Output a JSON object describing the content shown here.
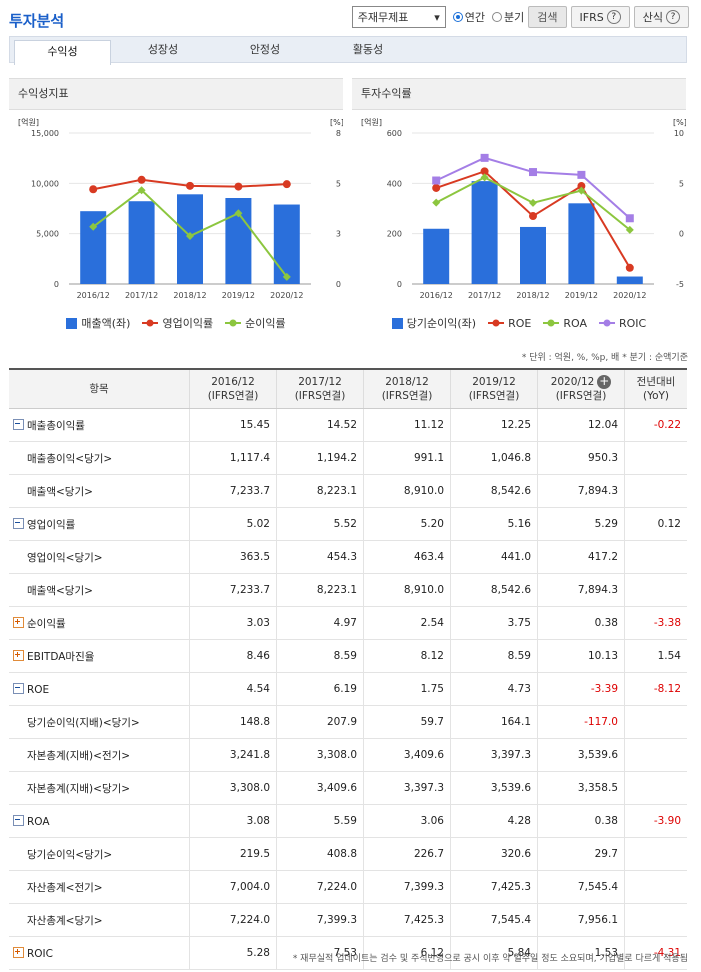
{
  "page_title": "투자분석",
  "controls": {
    "select_value": "주재무제표",
    "radio_annual": "연간",
    "radio_quarter": "분기",
    "search_label": "검색",
    "ifrs_label": "IFRS",
    "formula_label": "산식",
    "help_glyph": "?"
  },
  "tabs": [
    "수익성",
    "성장성",
    "안정성",
    "활동성"
  ],
  "left_chart_title": "수익성지표",
  "right_chart_title": "투자수익률",
  "chart_data": [
    {
      "type": "bar-line",
      "title": "수익성지표",
      "categories": [
        "2016/12",
        "2017/12",
        "2018/12",
        "2019/12",
        "2020/12"
      ],
      "y_left": {
        "unit": "[억원]",
        "ticks": [
          "0",
          "5,000",
          "10,000",
          "15,000"
        ],
        "min": 0,
        "max": 15000
      },
      "y_right": {
        "unit": "[%]",
        "ticks": [
          "0",
          "3",
          "5",
          "8"
        ],
        "min": 0,
        "max": 8
      },
      "bars": {
        "name": "매출액(좌)",
        "values": [
          7233.7,
          8223.1,
          8910.0,
          8542.6,
          7894.3
        ],
        "color": "#2a6fdb"
      },
      "lines": [
        {
          "name": "영업이익률",
          "values": [
            5.02,
            5.52,
            5.2,
            5.16,
            5.29
          ],
          "color": "#d83a22"
        },
        {
          "name": "순이익률",
          "values": [
            3.03,
            4.97,
            2.54,
            3.75,
            0.38
          ],
          "color": "#8cc63f"
        }
      ]
    },
    {
      "type": "bar-line",
      "title": "투자수익률",
      "categories": [
        "2016/12",
        "2017/12",
        "2018/12",
        "2019/12",
        "2020/12"
      ],
      "y_left": {
        "unit": "[억원]",
        "ticks": [
          "0",
          "200",
          "400",
          "600"
        ],
        "min": 0,
        "max": 600
      },
      "y_right": {
        "unit": "[%]",
        "ticks": [
          "-5",
          "0",
          "5",
          "10"
        ],
        "min": -5,
        "max": 10
      },
      "bars": {
        "name": "당기순이익(좌)",
        "values": [
          219.5,
          408.8,
          226.7,
          320.6,
          29.7
        ],
        "color": "#2a6fdb"
      },
      "lines": [
        {
          "name": "ROE",
          "values": [
            4.54,
            6.19,
            1.75,
            4.73,
            -3.39
          ],
          "color": "#d83a22"
        },
        {
          "name": "ROA",
          "values": [
            3.08,
            5.59,
            3.06,
            4.28,
            0.38
          ],
          "color": "#8cc63f"
        },
        {
          "name": "ROIC",
          "values": [
            5.28,
            7.53,
            6.12,
            5.84,
            1.53
          ],
          "color": "#a47ee6"
        }
      ]
    }
  ],
  "unit_note": "* 단위 : 억원, %, %p, 배   * 분기 : 순액기준",
  "table": {
    "header_item": "항목",
    "columns": [
      {
        "year": "2016/12",
        "type": "(IFRS연결)"
      },
      {
        "year": "2017/12",
        "type": "(IFRS연결)"
      },
      {
        "year": "2018/12",
        "type": "(IFRS연결)"
      },
      {
        "year": "2019/12",
        "type": "(IFRS연결)"
      },
      {
        "year": "2020/12",
        "type": "(IFRS연결)"
      }
    ],
    "header_add_glyph": "+",
    "yoy_line1": "전년대비",
    "yoy_line2": "(YoY)",
    "rows": [
      {
        "label": "매출총이익률",
        "level": 0,
        "toggle": "minus",
        "values": [
          "15.45",
          "14.52",
          "11.12",
          "12.25",
          "12.04"
        ],
        "yoy": "-0.22"
      },
      {
        "label": "매출총이익<당기>",
        "level": 1,
        "values": [
          "1,117.4",
          "1,194.2",
          "991.1",
          "1,046.8",
          "950.3"
        ],
        "yoy": ""
      },
      {
        "label": "매출액<당기>",
        "level": 1,
        "values": [
          "7,233.7",
          "8,223.1",
          "8,910.0",
          "8,542.6",
          "7,894.3"
        ],
        "yoy": ""
      },
      {
        "label": "영업이익률",
        "level": 0,
        "toggle": "minus",
        "values": [
          "5.02",
          "5.52",
          "5.20",
          "5.16",
          "5.29"
        ],
        "yoy": "0.12"
      },
      {
        "label": "영업이익<당기>",
        "level": 1,
        "values": [
          "363.5",
          "454.3",
          "463.4",
          "441.0",
          "417.2"
        ],
        "yoy": ""
      },
      {
        "label": "매출액<당기>",
        "level": 1,
        "values": [
          "7,233.7",
          "8,223.1",
          "8,910.0",
          "8,542.6",
          "7,894.3"
        ],
        "yoy": ""
      },
      {
        "label": "순이익률",
        "level": 0,
        "toggle": "plus",
        "values": [
          "3.03",
          "4.97",
          "2.54",
          "3.75",
          "0.38"
        ],
        "yoy": "-3.38"
      },
      {
        "label": "EBITDA마진율",
        "level": 0,
        "toggle": "plus",
        "values": [
          "8.46",
          "8.59",
          "8.12",
          "8.59",
          "10.13"
        ],
        "yoy": "1.54"
      },
      {
        "label": "ROE",
        "level": 0,
        "toggle": "minus",
        "values": [
          "4.54",
          "6.19",
          "1.75",
          "4.73",
          "-3.39"
        ],
        "yoy": "-8.12"
      },
      {
        "label": "당기순이익(지배)<당기>",
        "level": 1,
        "values": [
          "148.8",
          "207.9",
          "59.7",
          "164.1",
          "-117.0"
        ],
        "yoy": ""
      },
      {
        "label": "자본총계(지배)<전기>",
        "level": 1,
        "values": [
          "3,241.8",
          "3,308.0",
          "3,409.6",
          "3,397.3",
          "3,539.6"
        ],
        "yoy": ""
      },
      {
        "label": "자본총계(지배)<당기>",
        "level": 1,
        "values": [
          "3,308.0",
          "3,409.6",
          "3,397.3",
          "3,539.6",
          "3,358.5"
        ],
        "yoy": ""
      },
      {
        "label": "ROA",
        "level": 0,
        "toggle": "minus",
        "values": [
          "3.08",
          "5.59",
          "3.06",
          "4.28",
          "0.38"
        ],
        "yoy": "-3.90"
      },
      {
        "label": "당기순이익<당기>",
        "level": 1,
        "values": [
          "219.5",
          "408.8",
          "226.7",
          "320.6",
          "29.7"
        ],
        "yoy": ""
      },
      {
        "label": "자산총계<전기>",
        "level": 1,
        "values": [
          "7,004.0",
          "7,224.0",
          "7,399.3",
          "7,425.3",
          "7,545.4"
        ],
        "yoy": ""
      },
      {
        "label": "자산총계<당기>",
        "level": 1,
        "values": [
          "7,224.0",
          "7,399.3",
          "7,425.3",
          "7,545.4",
          "7,956.1"
        ],
        "yoy": ""
      },
      {
        "label": "ROIC",
        "level": 0,
        "toggle": "plus",
        "values": [
          "5.28",
          "7.53",
          "6.12",
          "5.84",
          "1.53"
        ],
        "yoy": "-4.31"
      }
    ]
  },
  "footer_note": "* 재무실적 업데이트는 검수 및 주석반영으로 공시 이후 약 일주일 정도 소요되며, 기업별로 다르게 적용됨"
}
